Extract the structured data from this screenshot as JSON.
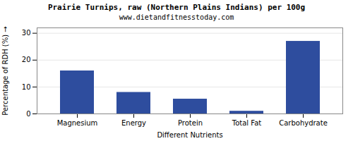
{
  "chart_data": {
    "type": "bar",
    "title": "Prairie Turnips, raw (Northern Plains Indians) per 100g",
    "subtitle": "www.dietandfitnesstoday.com",
    "categories": [
      "Magnesium",
      "Energy",
      "Protein",
      "Total Fat",
      "Carbohydrate"
    ],
    "values": [
      16,
      8,
      5.5,
      1,
      27
    ],
    "color": "#2e4d9e",
    "xlabel": "Different Nutrients",
    "ylabel": "Percentage of RDH (%)",
    "ylim": [
      0,
      32
    ],
    "yticks": [
      0,
      10,
      20,
      30
    ],
    "grid": true
  }
}
